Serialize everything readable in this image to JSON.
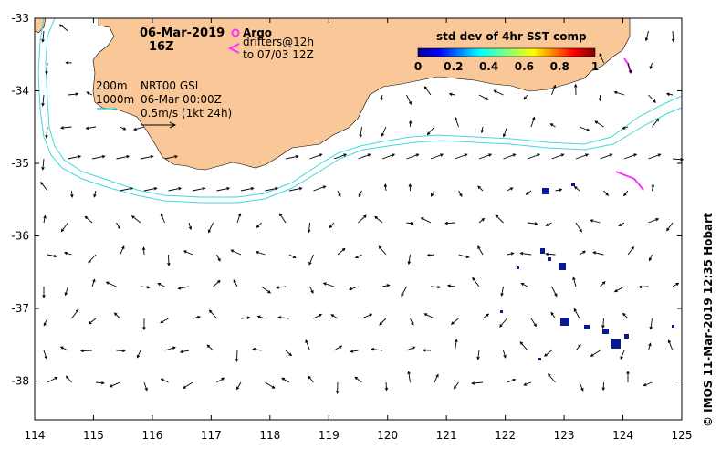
{
  "map": {
    "date_label": "06-Mar-2019",
    "time_label": "16Z",
    "product_label": "NRT00 GSL",
    "analysis_time": "06-Mar 00:00Z",
    "scale_label": "0.5m/s (1kt 24h)",
    "isobath_200": "200m",
    "isobath_1000": "1000m",
    "argo_label": "Argo",
    "drifters_line1": "drifters@12h",
    "drifters_line2": "to 07/03 12Z",
    "credit": "© IMOS 11-Mar-2019 12:35 Hobart",
    "colorbar": {
      "title": "std dev of 4hr SST comp",
      "ticks": [
        "0",
        "0.2",
        "0.4",
        "0.6",
        "0.8",
        "1"
      ]
    },
    "x_ticks": [
      "114",
      "115",
      "116",
      "117",
      "118",
      "119",
      "120",
      "121",
      "122",
      "123",
      "124",
      "125"
    ],
    "y_ticks": [
      "-33",
      "-34",
      "-35",
      "-36",
      "-37",
      "-38"
    ],
    "colors": {
      "land": "#fac898",
      "isobath": "#3fd8e0",
      "argo": "#ff33ff",
      "sst_patch": "#0a1a8c"
    }
  }
}
